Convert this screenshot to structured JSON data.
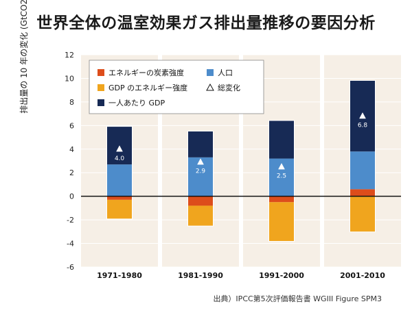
{
  "title": "世界全体の温室効果ガス排出量推移の要因分析",
  "source": "出典）IPCC第5次評価報告書 WGIII Figure SPM3",
  "colors": {
    "panel_bg": "#f6efe6",
    "carbon_intensity": "#dd4d1b",
    "energy_intensity": "#f0a51e",
    "gdp_per_capita": "#172a55",
    "population": "#4d8ccb",
    "marker_fill": "#ffffff"
  },
  "chart_data": {
    "type": "bar",
    "stacked": true,
    "title": "世界全体の温室効果ガス排出量推移の要因分析",
    "ylabel": "排出量の 10 年の変化 (GtCO2)",
    "xlabel": "",
    "ylim": [
      -6,
      12
    ],
    "yticks": [
      -6,
      -4,
      -2,
      0,
      2,
      4,
      6,
      8,
      10,
      12
    ],
    "categories": [
      "1971-1980",
      "1981-1990",
      "1991-2000",
      "2001-2010"
    ],
    "series": [
      {
        "name": "エネルギーの炭素強度",
        "key": "carbon_intensity",
        "values": [
          -0.3,
          -0.8,
          -0.5,
          0.6
        ]
      },
      {
        "name": "人口",
        "key": "population",
        "values": [
          2.7,
          3.3,
          3.2,
          3.2
        ]
      },
      {
        "name": "GDP のエネルギー強度",
        "key": "energy_intensity",
        "values": [
          -1.6,
          -1.7,
          -3.3,
          -3.0
        ]
      },
      {
        "name": "一人あたり GDP",
        "key": "gdp_per_capita",
        "values": [
          3.2,
          2.2,
          3.2,
          6.0
        ]
      }
    ],
    "total_change": {
      "name": "総変化",
      "values": [
        4.0,
        2.9,
        2.5,
        6.8
      ],
      "labels": [
        "4.0",
        "2.9",
        "2.5",
        "6.8"
      ]
    },
    "legend": {
      "placement": "top-left",
      "order": [
        "carbon_intensity",
        "population",
        "energy_intensity",
        "total",
        "gdp_per_capita"
      ]
    },
    "grid": true
  }
}
